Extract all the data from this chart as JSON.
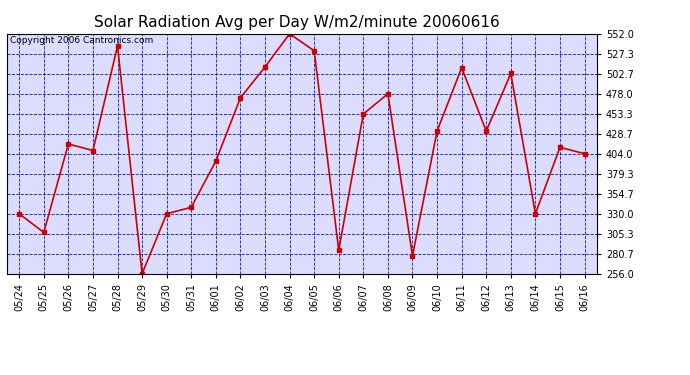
{
  "title": "Solar Radiation Avg per Day W/m2/minute 20060616",
  "copyright_text": "Copyright 2006 Cantronics.com",
  "x_labels": [
    "05/24",
    "05/25",
    "05/26",
    "05/27",
    "05/28",
    "05/29",
    "05/30",
    "05/31",
    "06/01",
    "06/02",
    "06/03",
    "06/04",
    "06/05",
    "06/06",
    "06/07",
    "06/08",
    "06/09",
    "06/10",
    "06/11",
    "06/12",
    "06/13",
    "06/14",
    "06/15",
    "06/16"
  ],
  "y_values": [
    330,
    307,
    416,
    408,
    537,
    256,
    330,
    338,
    395,
    473,
    511,
    552,
    531,
    285,
    453,
    478,
    278,
    432,
    510,
    432,
    503,
    330,
    412,
    404
  ],
  "y_min": 256.0,
  "y_max": 552.0,
  "y_ticks": [
    256.0,
    280.7,
    305.3,
    330.0,
    354.7,
    379.3,
    404.0,
    428.7,
    453.3,
    478.0,
    502.7,
    527.3,
    552.0
  ],
  "line_color": "#cc0000",
  "marker": "s",
  "marker_size": 2.5,
  "fig_bg_color": "#ffffff",
  "plot_bg_color": "#dcdcff",
  "grid_color": "#0000aa",
  "title_fontsize": 11,
  "tick_fontsize": 7,
  "copyright_fontsize": 6.5,
  "line_width": 1.2
}
